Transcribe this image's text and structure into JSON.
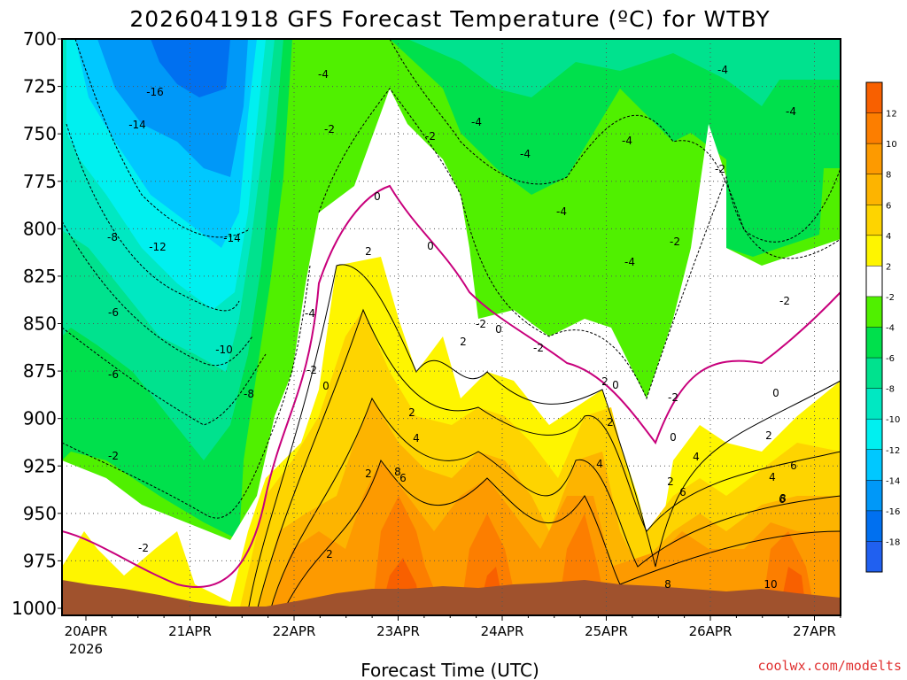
{
  "chart_data": {
    "type": "heatmap",
    "title": "2026041918 GFS Forecast Temperature (ºC) for WTBY",
    "xlabel": "Forecast Time (UTC)",
    "ylabel": "",
    "credit": "coolwx.com/modelts",
    "y_pressure_levels": [
      700,
      725,
      750,
      775,
      800,
      825,
      850,
      875,
      900,
      925,
      950,
      975,
      1000
    ],
    "y_range": [
      700,
      1000
    ],
    "x_tick_labels": [
      "20APR",
      "21APR",
      "22APR",
      "23APR",
      "24APR",
      "25APR",
      "26APR",
      "27APR"
    ],
    "x_year_label": "2026",
    "colorbar": {
      "tick_labels": [
        "12",
        "10",
        "8",
        "6",
        "4",
        "2",
        "-2",
        "-4",
        "-6",
        "-8",
        "-10",
        "-12",
        "-14",
        "-16",
        "-18"
      ],
      "colors": [
        "#f86000",
        "#fc7e00",
        "#fd9a00",
        "#fdb400",
        "#fed400",
        "#fef500",
        "#ffffff",
        "#50f000",
        "#00e04c",
        "#00e28e",
        "#00e8c2",
        "#00f0f0",
        "#00c8ff",
        "#0098f8",
        "#0070f0",
        "#2060f0"
      ]
    },
    "contour_labels": [
      {
        "text": "-16"
      },
      {
        "text": "-14"
      },
      {
        "text": "-14"
      },
      {
        "text": "-12"
      },
      {
        "text": "-10"
      },
      {
        "text": "-8"
      },
      {
        "text": "-8"
      },
      {
        "text": "-6"
      },
      {
        "text": "-6"
      },
      {
        "text": "-4"
      },
      {
        "text": "-4"
      },
      {
        "text": "-4"
      },
      {
        "text": "-4"
      },
      {
        "text": "-4"
      },
      {
        "text": "-4"
      },
      {
        "text": "-4"
      },
      {
        "text": "-4"
      },
      {
        "text": "-4"
      },
      {
        "text": "-2"
      },
      {
        "text": "-2"
      },
      {
        "text": "-2"
      },
      {
        "text": "-2"
      },
      {
        "text": "-2"
      },
      {
        "text": "-2"
      },
      {
        "text": "-2"
      },
      {
        "text": "-2"
      },
      {
        "text": "-2"
      },
      {
        "text": "-2"
      },
      {
        "text": "-2"
      },
      {
        "text": "0"
      },
      {
        "text": "0"
      },
      {
        "text": "0"
      },
      {
        "text": "0"
      },
      {
        "text": "0"
      },
      {
        "text": "0"
      },
      {
        "text": "0"
      },
      {
        "text": "2"
      },
      {
        "text": "2"
      },
      {
        "text": "2"
      },
      {
        "text": "2"
      },
      {
        "text": "2"
      },
      {
        "text": "2"
      },
      {
        "text": "2"
      },
      {
        "text": "2"
      },
      {
        "text": "2"
      },
      {
        "text": "4"
      },
      {
        "text": "4"
      },
      {
        "text": "4"
      },
      {
        "text": "4"
      },
      {
        "text": "6"
      },
      {
        "text": "6"
      },
      {
        "text": "6"
      },
      {
        "text": "6"
      },
      {
        "text": "8"
      },
      {
        "text": "8"
      },
      {
        "text": "8"
      },
      {
        "text": "10"
      }
    ]
  }
}
